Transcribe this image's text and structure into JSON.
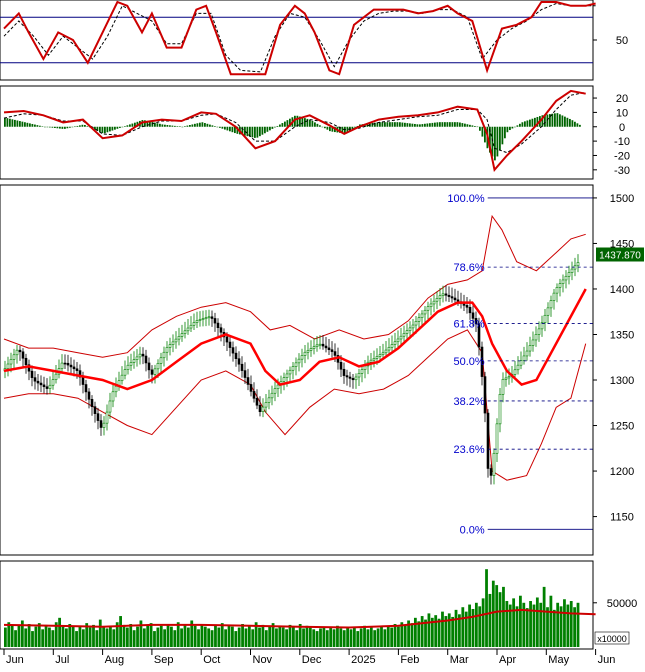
{
  "colors": {
    "price_line": "#ff0000",
    "bollinger": "#cc0000",
    "candle_up": "#008000",
    "candle_down": "#000000",
    "fib_text": "#0000cc",
    "fib_line": "#000080",
    "volume": "#008000",
    "volume_ma": "#cc0000",
    "stoch_k": "#cc0000",
    "stoch_d": "#000000",
    "stoch_bounds": "#000080",
    "macd_hist": "#006400",
    "macd_line": "#cc0000",
    "macd_signal": "#000000",
    "price_tag_bg": "#006400",
    "price_tag_text": "#ffffff"
  },
  "x_axis": {
    "months": [
      "Jun",
      "Jul",
      "Aug",
      "Sep",
      "Oct",
      "Nov",
      "Dec",
      "2025",
      "Feb",
      "Mar",
      "Apr",
      "May",
      "Jun"
    ],
    "month_index": [
      0,
      1,
      2,
      3,
      4,
      5,
      6,
      7,
      8,
      9,
      10,
      11,
      12
    ]
  },
  "stochastic": {
    "y_labels": [
      "50"
    ],
    "y_values": [
      50
    ],
    "upper_bound": 80,
    "lower_bound": 20,
    "range": [
      0,
      100
    ],
    "k_points": [
      [
        0,
        65
      ],
      [
        0.3,
        85
      ],
      [
        0.5,
        60
      ],
      [
        0.8,
        25
      ],
      [
        1.1,
        60
      ],
      [
        1.4,
        50
      ],
      [
        1.7,
        20
      ],
      [
        2.0,
        60
      ],
      [
        2.3,
        100
      ],
      [
        2.5,
        95
      ],
      [
        2.8,
        60
      ],
      [
        3.0,
        85
      ],
      [
        3.3,
        40
      ],
      [
        3.6,
        40
      ],
      [
        3.9,
        90
      ],
      [
        4.1,
        95
      ],
      [
        4.3,
        60
      ],
      [
        4.6,
        5
      ],
      [
        5.0,
        5
      ],
      [
        5.3,
        5
      ],
      [
        5.6,
        70
      ],
      [
        5.9,
        95
      ],
      [
        6.1,
        85
      ],
      [
        6.3,
        60
      ],
      [
        6.6,
        10
      ],
      [
        6.8,
        5
      ],
      [
        7.1,
        70
      ],
      [
        7.3,
        80
      ],
      [
        7.5,
        90
      ],
      [
        7.8,
        90
      ],
      [
        8.1,
        90
      ],
      [
        8.4,
        85
      ],
      [
        8.7,
        88
      ],
      [
        9.0,
        95
      ],
      [
        9.2,
        85
      ],
      [
        9.5,
        75
      ],
      [
        9.8,
        10
      ],
      [
        10.1,
        65
      ],
      [
        10.4,
        70
      ],
      [
        10.7,
        80
      ],
      [
        10.9,
        100
      ],
      [
        11.2,
        100
      ],
      [
        11.5,
        95
      ],
      [
        11.8,
        95
      ],
      [
        12.0,
        98
      ]
    ],
    "d_points": [
      [
        0,
        55
      ],
      [
        0.3,
        75
      ],
      [
        0.6,
        55
      ],
      [
        0.9,
        30
      ],
      [
        1.2,
        55
      ],
      [
        1.5,
        40
      ],
      [
        1.8,
        25
      ],
      [
        2.1,
        55
      ],
      [
        2.4,
        95
      ],
      [
        2.7,
        85
      ],
      [
        3.0,
        75
      ],
      [
        3.3,
        45
      ],
      [
        3.6,
        45
      ],
      [
        3.9,
        85
      ],
      [
        4.2,
        85
      ],
      [
        4.5,
        30
      ],
      [
        4.8,
        10
      ],
      [
        5.2,
        8
      ],
      [
        5.5,
        55
      ],
      [
        5.8,
        85
      ],
      [
        6.1,
        80
      ],
      [
        6.4,
        50
      ],
      [
        6.7,
        15
      ],
      [
        7.0,
        50
      ],
      [
        7.3,
        75
      ],
      [
        7.6,
        85
      ],
      [
        7.9,
        88
      ],
      [
        8.2,
        88
      ],
      [
        8.5,
        85
      ],
      [
        8.8,
        90
      ],
      [
        9.1,
        90
      ],
      [
        9.4,
        80
      ],
      [
        9.7,
        25
      ],
      [
        10.0,
        50
      ],
      [
        10.3,
        65
      ],
      [
        10.6,
        75
      ],
      [
        10.9,
        90
      ],
      [
        11.2,
        98
      ],
      [
        11.5,
        95
      ],
      [
        11.8,
        95
      ],
      [
        12.0,
        95
      ]
    ]
  },
  "macd": {
    "y_labels": [
      "20",
      "10",
      "0",
      "-10",
      "-20",
      "-30"
    ],
    "y_values": [
      20,
      10,
      0,
      -10,
      -20,
      -30
    ],
    "range": [
      -35,
      27
    ],
    "macd_points": [
      [
        0,
        10
      ],
      [
        0.4,
        11
      ],
      [
        0.8,
        8
      ],
      [
        1.2,
        3
      ],
      [
        1.6,
        5
      ],
      [
        2.0,
        -8
      ],
      [
        2.4,
        -6
      ],
      [
        2.8,
        3
      ],
      [
        3.2,
        5
      ],
      [
        3.6,
        4
      ],
      [
        4.0,
        10
      ],
      [
        4.3,
        9
      ],
      [
        4.7,
        0
      ],
      [
        5.1,
        -15
      ],
      [
        5.5,
        -10
      ],
      [
        5.9,
        5
      ],
      [
        6.2,
        8
      ],
      [
        6.6,
        1
      ],
      [
        6.9,
        -5
      ],
      [
        7.2,
        0
      ],
      [
        7.6,
        5
      ],
      [
        8.0,
        7
      ],
      [
        8.4,
        8
      ],
      [
        8.8,
        10
      ],
      [
        9.2,
        14
      ],
      [
        9.6,
        12
      ],
      [
        9.8,
        -5
      ],
      [
        9.95,
        -30
      ],
      [
        10.2,
        -20
      ],
      [
        10.5,
        -10
      ],
      [
        10.9,
        5
      ],
      [
        11.2,
        18
      ],
      [
        11.5,
        25
      ],
      [
        11.8,
        23
      ]
    ],
    "signal_points": [
      [
        0,
        6
      ],
      [
        0.4,
        9
      ],
      [
        0.8,
        8
      ],
      [
        1.2,
        4
      ],
      [
        1.6,
        4
      ],
      [
        2.0,
        -5
      ],
      [
        2.4,
        -6
      ],
      [
        2.8,
        0
      ],
      [
        3.2,
        4
      ],
      [
        3.6,
        4
      ],
      [
        4.0,
        8
      ],
      [
        4.3,
        9
      ],
      [
        4.7,
        3
      ],
      [
        5.1,
        -10
      ],
      [
        5.5,
        -10
      ],
      [
        5.9,
        0
      ],
      [
        6.2,
        5
      ],
      [
        6.6,
        3
      ],
      [
        6.9,
        -2
      ],
      [
        7.2,
        -1
      ],
      [
        7.6,
        3
      ],
      [
        8.0,
        5
      ],
      [
        8.4,
        7
      ],
      [
        8.8,
        8
      ],
      [
        9.2,
        12
      ],
      [
        9.6,
        12
      ],
      [
        9.8,
        5
      ],
      [
        9.95,
        -15
      ],
      [
        10.2,
        -18
      ],
      [
        10.5,
        -12
      ],
      [
        10.9,
        0
      ],
      [
        11.2,
        12
      ],
      [
        11.5,
        22
      ],
      [
        11.8,
        24
      ]
    ]
  },
  "price": {
    "y_labels": [
      "1500",
      "1450",
      "1400",
      "1350",
      "1300",
      "1250",
      "1200",
      "1150"
    ],
    "y_values": [
      1500,
      1450,
      1400,
      1350,
      1300,
      1250,
      1200,
      1150
    ],
    "range": [
      1110,
      1512
    ],
    "last_price_label": "1437.870",
    "last_price": 1437.87,
    "close_points": [
      [
        0,
        1310
      ],
      [
        0.3,
        1335
      ],
      [
        0.6,
        1300
      ],
      [
        0.9,
        1290
      ],
      [
        1.2,
        1320
      ],
      [
        1.5,
        1310
      ],
      [
        1.8,
        1270
      ],
      [
        2.0,
        1245
      ],
      [
        2.2,
        1285
      ],
      [
        2.5,
        1315
      ],
      [
        2.8,
        1330
      ],
      [
        3.0,
        1305
      ],
      [
        3.3,
        1335
      ],
      [
        3.6,
        1350
      ],
      [
        3.9,
        1365
      ],
      [
        4.2,
        1370
      ],
      [
        4.5,
        1345
      ],
      [
        4.8,
        1315
      ],
      [
        5.0,
        1290
      ],
      [
        5.2,
        1265
      ],
      [
        5.5,
        1290
      ],
      [
        5.8,
        1310
      ],
      [
        6.1,
        1330
      ],
      [
        6.4,
        1340
      ],
      [
        6.7,
        1330
      ],
      [
        6.9,
        1305
      ],
      [
        7.1,
        1300
      ],
      [
        7.4,
        1320
      ],
      [
        7.7,
        1330
      ],
      [
        8.0,
        1345
      ],
      [
        8.3,
        1360
      ],
      [
        8.6,
        1380
      ],
      [
        8.9,
        1395
      ],
      [
        9.1,
        1390
      ],
      [
        9.4,
        1380
      ],
      [
        9.6,
        1360
      ],
      [
        9.75,
        1280
      ],
      [
        9.85,
        1180
      ],
      [
        9.95,
        1220
      ],
      [
        10.1,
        1300
      ],
      [
        10.3,
        1305
      ],
      [
        10.6,
        1330
      ],
      [
        10.9,
        1360
      ],
      [
        11.2,
        1400
      ],
      [
        11.5,
        1420
      ],
      [
        11.8,
        1437.87
      ]
    ],
    "ma20_points": [
      [
        0,
        1310
      ],
      [
        0.5,
        1315
      ],
      [
        1.0,
        1310
      ],
      [
        1.5,
        1305
      ],
      [
        2.0,
        1300
      ],
      [
        2.5,
        1290
      ],
      [
        3.0,
        1300
      ],
      [
        3.5,
        1320
      ],
      [
        4.0,
        1340
      ],
      [
        4.5,
        1350
      ],
      [
        5.0,
        1340
      ],
      [
        5.3,
        1310
      ],
      [
        5.6,
        1295
      ],
      [
        6.0,
        1300
      ],
      [
        6.4,
        1320
      ],
      [
        6.8,
        1325
      ],
      [
        7.2,
        1315
      ],
      [
        7.6,
        1320
      ],
      [
        8.0,
        1335
      ],
      [
        8.4,
        1355
      ],
      [
        8.8,
        1375
      ],
      [
        9.2,
        1385
      ],
      [
        9.5,
        1385
      ],
      [
        9.7,
        1370
      ],
      [
        9.9,
        1340
      ],
      [
        10.2,
        1310
      ],
      [
        10.5,
        1295
      ],
      [
        10.8,
        1300
      ],
      [
        11.1,
        1330
      ],
      [
        11.4,
        1360
      ],
      [
        11.8,
        1400
      ]
    ],
    "bb_upper": [
      [
        0,
        1345
      ],
      [
        0.5,
        1335
      ],
      [
        1.0,
        1335
      ],
      [
        1.5,
        1330
      ],
      [
        2.0,
        1325
      ],
      [
        2.5,
        1330
      ],
      [
        3.0,
        1355
      ],
      [
        3.5,
        1370
      ],
      [
        4.0,
        1380
      ],
      [
        4.5,
        1385
      ],
      [
        5.0,
        1375
      ],
      [
        5.4,
        1355
      ],
      [
        5.8,
        1360
      ],
      [
        6.3,
        1345
      ],
      [
        6.8,
        1355
      ],
      [
        7.3,
        1345
      ],
      [
        7.8,
        1350
      ],
      [
        8.2,
        1365
      ],
      [
        8.6,
        1390
      ],
      [
        9.0,
        1405
      ],
      [
        9.4,
        1410
      ],
      [
        9.7,
        1420
      ],
      [
        9.9,
        1480
      ],
      [
        10.1,
        1465
      ],
      [
        10.4,
        1430
      ],
      [
        10.8,
        1420
      ],
      [
        11.2,
        1440
      ],
      [
        11.5,
        1455
      ],
      [
        11.8,
        1460
      ]
    ],
    "bb_lower": [
      [
        0,
        1280
      ],
      [
        0.5,
        1285
      ],
      [
        1.0,
        1285
      ],
      [
        1.5,
        1280
      ],
      [
        2.0,
        1265
      ],
      [
        2.5,
        1250
      ],
      [
        3.0,
        1240
      ],
      [
        3.5,
        1270
      ],
      [
        4.0,
        1300
      ],
      [
        4.5,
        1310
      ],
      [
        5.0,
        1295
      ],
      [
        5.3,
        1265
      ],
      [
        5.7,
        1240
      ],
      [
        6.2,
        1270
      ],
      [
        6.7,
        1290
      ],
      [
        7.2,
        1285
      ],
      [
        7.7,
        1290
      ],
      [
        8.2,
        1305
      ],
      [
        8.6,
        1325
      ],
      [
        9.0,
        1345
      ],
      [
        9.4,
        1355
      ],
      [
        9.7,
        1330
      ],
      [
        9.9,
        1200
      ],
      [
        10.2,
        1190
      ],
      [
        10.6,
        1195
      ],
      [
        10.9,
        1230
      ],
      [
        11.2,
        1270
      ],
      [
        11.5,
        1280
      ],
      [
        11.8,
        1340
      ]
    ]
  },
  "fibonacci": {
    "levels": [
      {
        "label": "100.0%",
        "value": 1500
      },
      {
        "label": "78.6%",
        "value": 1424
      },
      {
        "label": "61.8%",
        "value": 1362
      },
      {
        "label": "50.0%",
        "value": 1321
      },
      {
        "label": "38.2%",
        "value": 1277
      },
      {
        "label": "23.6%",
        "value": 1224
      },
      {
        "label": "0.0%",
        "value": 1136
      }
    ],
    "start_month": 9.0,
    "end_month": 12.0
  },
  "volume": {
    "y_labels": [
      "50000"
    ],
    "y_values": [
      50000
    ],
    "unit_label": "x10000",
    "range": [
      0,
      95000
    ],
    "bars": [
      22000,
      28000,
      25000,
      19000,
      24000,
      30000,
      21000,
      26000,
      18000,
      23000,
      27000,
      20000,
      25000,
      22000,
      19000,
      28000,
      33000,
      24000,
      21000,
      26000,
      23000,
      18000,
      24000,
      20000,
      27000,
      22000,
      25000,
      19000,
      31000,
      23000,
      21000,
      24000,
      20000,
      28000,
      35000,
      25000,
      22000,
      26000,
      19000,
      23000,
      30000,
      21000,
      25000,
      27000,
      18000,
      22000,
      24000,
      20000,
      26000,
      23000,
      19000,
      28000,
      21000,
      25000,
      22000,
      30000,
      24000,
      20000,
      26000,
      23000,
      21000,
      19000,
      24000,
      22000,
      27000,
      20000,
      25000,
      23000,
      18000,
      22000,
      26000,
      21000,
      24000,
      20000,
      28000,
      22000,
      25000,
      19000,
      23000,
      27000,
      21000,
      24000,
      22000,
      20000,
      25000,
      23000,
      19000,
      26000,
      21000,
      24000,
      22000,
      20000,
      18000,
      21000,
      23000,
      19000,
      22000,
      20000,
      24000,
      21000,
      19000,
      23000,
      20000,
      22000,
      18000,
      21000,
      24000,
      20000,
      22000,
      19000,
      21000,
      23000,
      20000,
      24000,
      22000,
      26000,
      23000,
      28000,
      25000,
      30000,
      27000,
      33000,
      29000,
      35000,
      31000,
      38000,
      33000,
      36000,
      32000,
      40000,
      35000,
      38000,
      34000,
      42000,
      37000,
      45000,
      40000,
      48000,
      43000,
      50000,
      46000,
      55000,
      88000,
      60000,
      75000,
      70000,
      62000,
      68000,
      52000,
      48000,
      55000,
      46000,
      58000,
      50000,
      44000,
      52000,
      48000,
      56000,
      50000,
      68000,
      45000,
      58000,
      42000,
      50000,
      46000,
      54000,
      48000,
      52000,
      45000,
      50000
    ],
    "ma_points": [
      [
        0,
        25000
      ],
      [
        1,
        24000
      ],
      [
        2,
        23000
      ],
      [
        3,
        25000
      ],
      [
        4,
        25000
      ],
      [
        5,
        24000
      ],
      [
        6,
        23000
      ],
      [
        7,
        22000
      ],
      [
        8,
        24000
      ],
      [
        9,
        30000
      ],
      [
        9.5,
        34000
      ],
      [
        10,
        40000
      ],
      [
        10.5,
        42000
      ],
      [
        11,
        40000
      ],
      [
        11.5,
        38000
      ],
      [
        12,
        37000
      ]
    ]
  }
}
